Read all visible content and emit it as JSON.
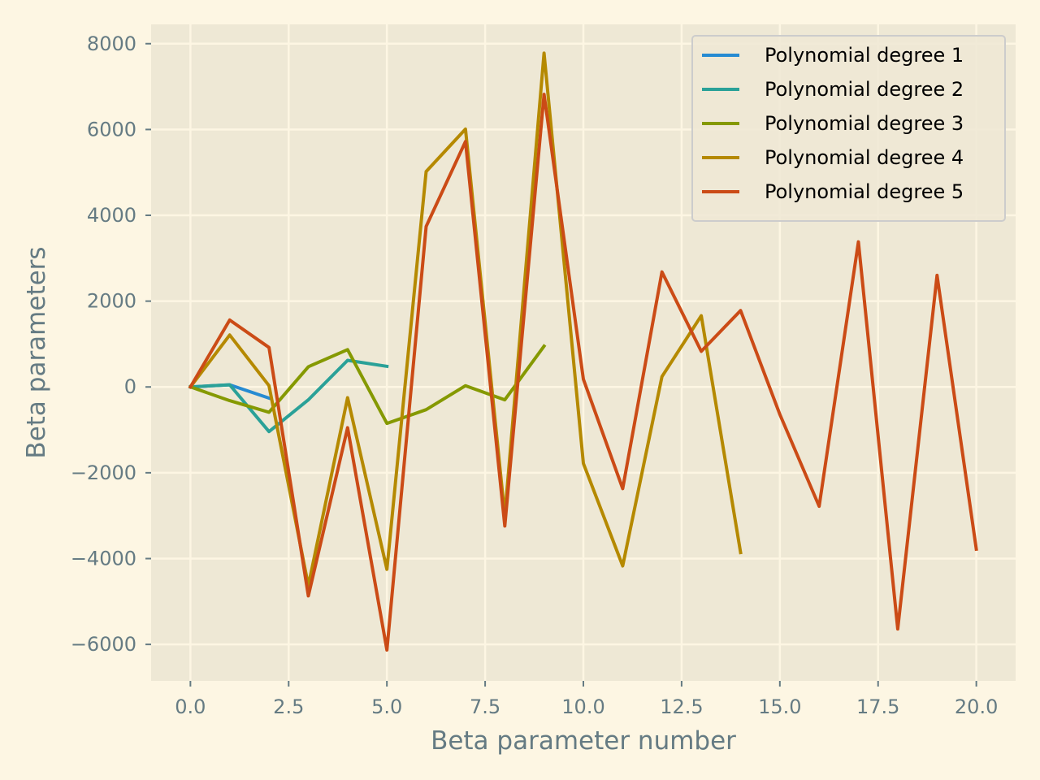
{
  "chart_data": {
    "type": "line",
    "title": "",
    "xlabel": "Beta parameter number",
    "ylabel": "Beta parameters",
    "xlim": [
      -1.0,
      21.0
    ],
    "ylim": [
      -6850,
      8450
    ],
    "xticks": [
      0,
      2.5,
      5,
      7.5,
      10,
      12.5,
      15,
      17.5,
      20
    ],
    "xtick_labels": [
      "0.0",
      "2.5",
      "5.0",
      "7.5",
      "10.0",
      "12.5",
      "15.0",
      "17.5",
      "20.0"
    ],
    "yticks": [
      -6000,
      -4000,
      -2000,
      0,
      2000,
      4000,
      6000,
      8000
    ],
    "ytick_labels": [
      "−6000",
      "−4000",
      "−2000",
      "0",
      "2000",
      "4000",
      "6000",
      "8000"
    ],
    "grid": true,
    "legend_position": "top-right",
    "series": [
      {
        "name": "Polynomial degree 1",
        "color": "#268bd2",
        "x": [
          0,
          1,
          2
        ],
        "values": [
          0,
          50,
          -260
        ]
      },
      {
        "name": "Polynomial degree 2",
        "color": "#2aa198",
        "x": [
          0,
          1,
          2,
          3,
          4,
          5
        ],
        "values": [
          0,
          50,
          -1040,
          -300,
          620,
          480
        ]
      },
      {
        "name": "Polynomial degree 3",
        "color": "#859900",
        "x": [
          0,
          1,
          2,
          3,
          4,
          5,
          6,
          7,
          8,
          9
        ],
        "values": [
          0,
          -320,
          -590,
          470,
          870,
          -850,
          -530,
          30,
          -300,
          950
        ]
      },
      {
        "name": "Polynomial degree 4",
        "color": "#b58900",
        "x": [
          0,
          1,
          2,
          3,
          4,
          5,
          6,
          7,
          8,
          9,
          10,
          11,
          12,
          13,
          14
        ],
        "values": [
          0,
          1210,
          30,
          -4630,
          -250,
          -4250,
          5020,
          6010,
          -3000,
          7780,
          -1780,
          -4170,
          240,
          1660,
          -3860
        ]
      },
      {
        "name": "Polynomial degree 5",
        "color": "#cb4b16",
        "x": [
          0,
          1,
          2,
          3,
          4,
          5,
          6,
          7,
          8,
          9,
          10,
          11,
          12,
          13,
          14,
          15,
          16,
          17,
          18,
          19,
          20
        ],
        "values": [
          0,
          1560,
          920,
          -4870,
          -950,
          -6130,
          3740,
          5720,
          -3240,
          6820,
          180,
          -2370,
          2680,
          830,
          1780,
          -640,
          -2780,
          3380,
          -5640,
          2600,
          -3780
        ]
      }
    ]
  }
}
